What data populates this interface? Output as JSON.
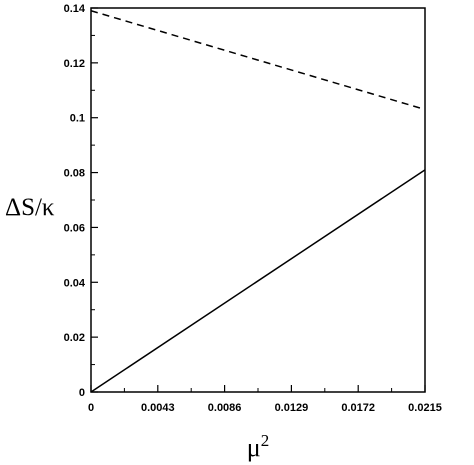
{
  "chart_data": {
    "type": "line",
    "title": "",
    "xlabel": "μ²",
    "ylabel": "ΔS/κ",
    "xlim": [
      0,
      0.0215
    ],
    "ylim": [
      0,
      0.14
    ],
    "x_ticks": [
      "0",
      "0.0043",
      "0.0086",
      "0.0129",
      "0.0172",
      "0.0215"
    ],
    "y_ticks": [
      "0",
      "0.02",
      "0.04",
      "0.06",
      "0.08",
      "0.1",
      "0.12",
      "0.14"
    ],
    "grid": false,
    "legend": "none",
    "series": [
      {
        "style": "solid",
        "x": [
          0,
          0.0215
        ],
        "y": [
          0,
          0.081
        ]
      },
      {
        "style": "dashed",
        "x": [
          0,
          0.0215
        ],
        "y": [
          0.139,
          0.103
        ]
      }
    ]
  }
}
